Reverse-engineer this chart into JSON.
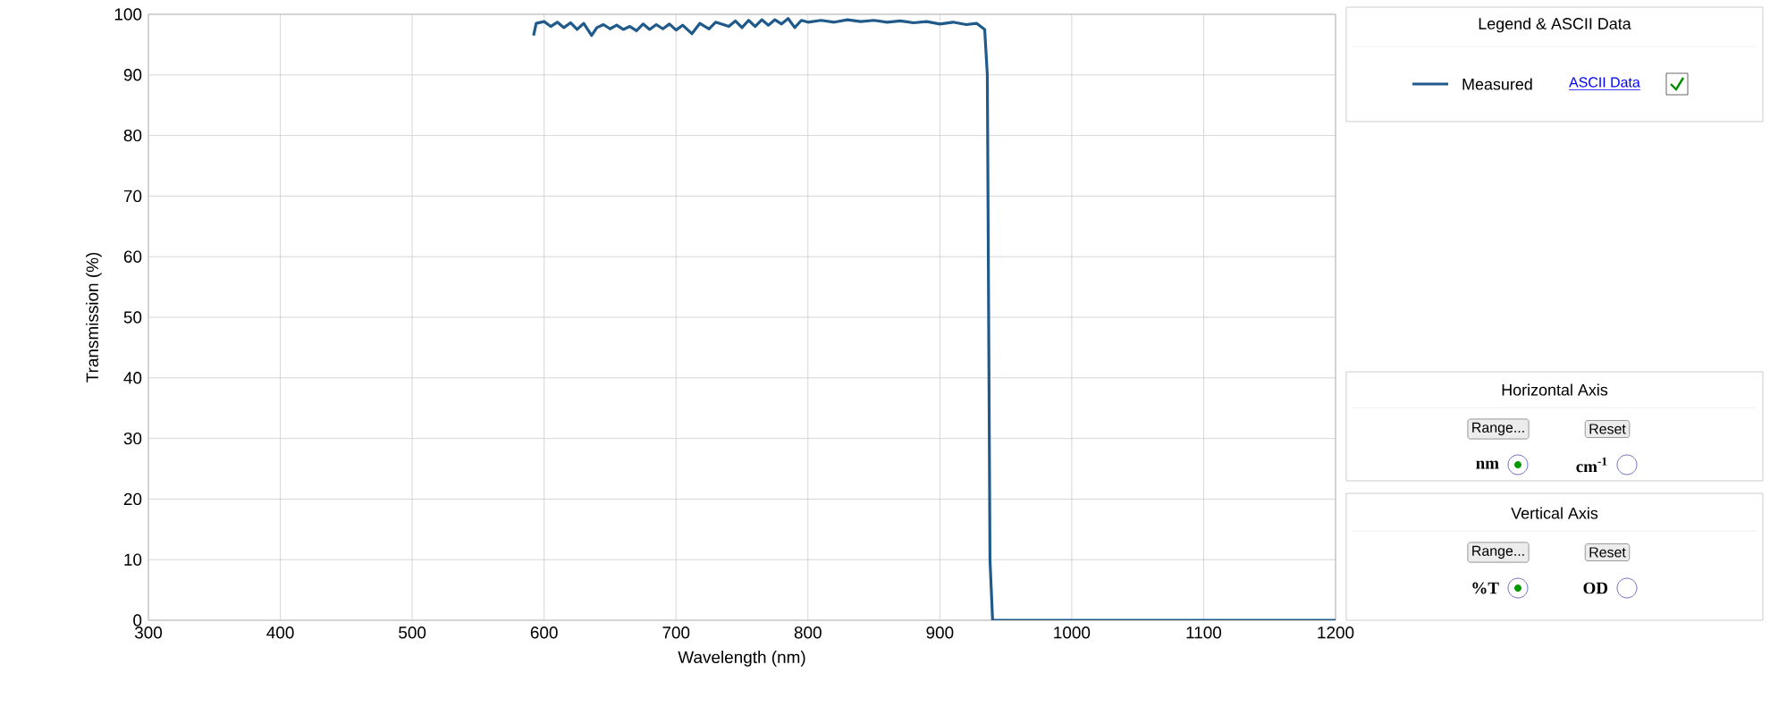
{
  "chart_data": {
    "type": "line",
    "xlabel": "Wavelength (nm)",
    "ylabel": "Transmission (%)",
    "x": [
      592,
      594,
      600,
      605,
      610,
      615,
      620,
      625,
      630,
      636,
      640,
      645,
      650,
      655,
      660,
      665,
      670,
      675,
      680,
      685,
      690,
      695,
      700,
      705,
      712,
      718,
      725,
      730,
      740,
      745,
      750,
      755,
      760,
      765,
      770,
      775,
      780,
      785,
      790,
      795,
      800,
      810,
      820,
      830,
      840,
      850,
      860,
      870,
      880,
      890,
      900,
      910,
      920,
      928,
      934,
      936,
      937,
      938,
      940,
      1000,
      1100,
      1200
    ],
    "series": [
      {
        "name": "Measured",
        "color": "#1f5a8a",
        "values": [
          96.5,
          98.5,
          98.8,
          98,
          98.7,
          97.8,
          98.6,
          97.5,
          98.5,
          96.5,
          97.8,
          98.3,
          97.6,
          98.2,
          97.5,
          98,
          97.3,
          98.4,
          97.5,
          98.3,
          97.6,
          98.4,
          97.4,
          98.2,
          96.8,
          98.5,
          97.6,
          98.7,
          98,
          98.9,
          97.8,
          99,
          98,
          99.1,
          98.2,
          99.1,
          98.4,
          99.3,
          97.8,
          99,
          98.7,
          99,
          98.7,
          99.1,
          98.8,
          99,
          98.7,
          98.9,
          98.6,
          98.8,
          98.4,
          98.7,
          98.3,
          98.5,
          97.5,
          90,
          50,
          10,
          0,
          0,
          0,
          0
        ]
      }
    ],
    "xlim": [
      300,
      1200
    ],
    "ylim": [
      0,
      100
    ],
    "xticks": [
      300,
      400,
      500,
      600,
      700,
      800,
      900,
      1000,
      1100,
      1200
    ],
    "yticks": [
      0,
      10,
      20,
      30,
      40,
      50,
      60,
      70,
      80,
      90,
      100
    ],
    "grid": true,
    "legend": "right",
    "legend_title": "Legend & ASCII Data",
    "marker": "none",
    "line_style": "solid",
    "annotations": [
      "ASCII Data",
      "Horizontal  Axis",
      "Range...",
      "Reset",
      "nm",
      "cm$^{-1}$",
      "Vertical  Axis",
      "Range...",
      "Reset",
      "%T",
      "OD"
    ]
  }
}
